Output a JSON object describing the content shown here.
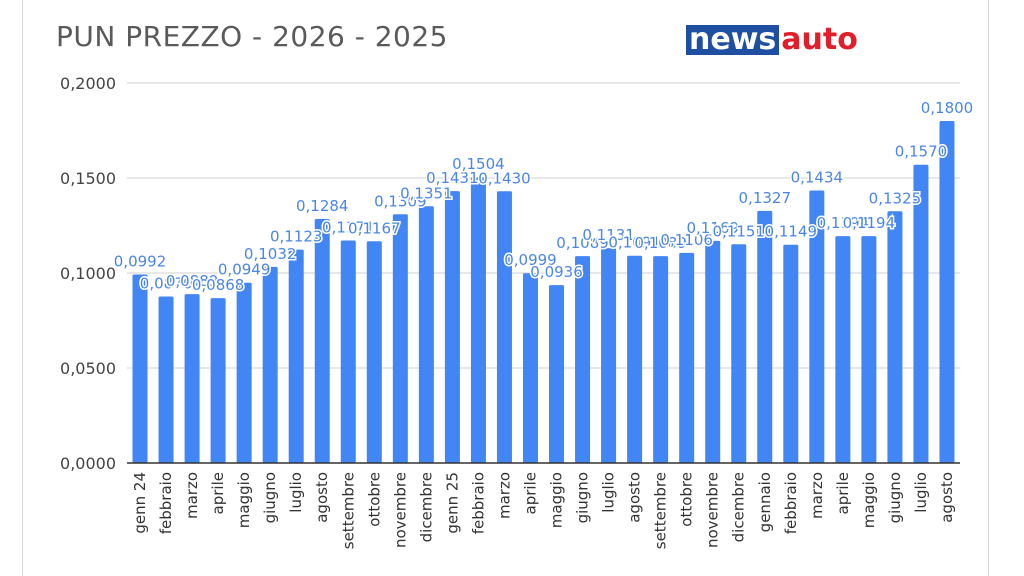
{
  "title": "PUN PREZZO - 2026 - 2025",
  "logo": {
    "part1": "news",
    "part2": "auto"
  },
  "colors": {
    "bar": "#4285f4",
    "label": "#4a86e8",
    "grid": "#d0d0d0",
    "axis": "#333333",
    "text": "#444444"
  },
  "chart_data": {
    "type": "bar",
    "title": "PUN PREZZO - 2026 - 2025",
    "xlabel": "",
    "ylabel": "",
    "ylim": [
      0,
      0.2
    ],
    "yticks": [
      "0,0000",
      "0,0500",
      "0,1000",
      "0,1500",
      "0,2000"
    ],
    "ytick_values": [
      0,
      0.05,
      0.1,
      0.15,
      0.2
    ],
    "grid": true,
    "legend": "none",
    "categories": [
      "genn 24",
      "febbraio",
      "marzo",
      "aprile",
      "maggio",
      "giugno",
      "luglio",
      "agosto",
      "settembre",
      "ottobre",
      "novembre",
      "dicembre",
      "genn 25",
      "febbraio",
      "marzo",
      "aprile",
      "maggio",
      "giugno",
      "luglio",
      "agosto",
      "settembre",
      "ottobre",
      "novembre",
      "dicembre",
      "gennaio",
      "febbraio",
      "marzo",
      "aprile",
      "maggio",
      "giugno",
      "luglio",
      "agosto"
    ],
    "values": [
      0.0992,
      0.0876,
      0.0889,
      0.0868,
      0.0949,
      0.1032,
      0.1123,
      0.1284,
      0.1171,
      0.1167,
      0.1309,
      0.1351,
      0.1431,
      0.1504,
      0.143,
      0.0999,
      0.0936,
      0.1089,
      0.1131,
      0.1091,
      0.1089,
      0.1106,
      0.1169,
      0.1151,
      0.1327,
      0.1149,
      0.1434,
      0.1194,
      0.1194,
      0.1325,
      0.157,
      0.18
    ],
    "labels": [
      "0,0992",
      "0,0876",
      "0,0889",
      "0,0868",
      "0,0949",
      "0,1032",
      "0,1123",
      "0,1284",
      "0,1171",
      "0,1167",
      "0,1309",
      "0,1351",
      "0,1431",
      "0,1504",
      "0,1430",
      "0,0999",
      "0,0936",
      "0,1089",
      "0,1131",
      "0,1091",
      "0,1089",
      "0,1106",
      "0,1169",
      "0,1151",
      "0,1327",
      "0,1149",
      "0,1434",
      "0,1194",
      "0,1194",
      "0,1325",
      "0,1570",
      "0,1800"
    ]
  }
}
